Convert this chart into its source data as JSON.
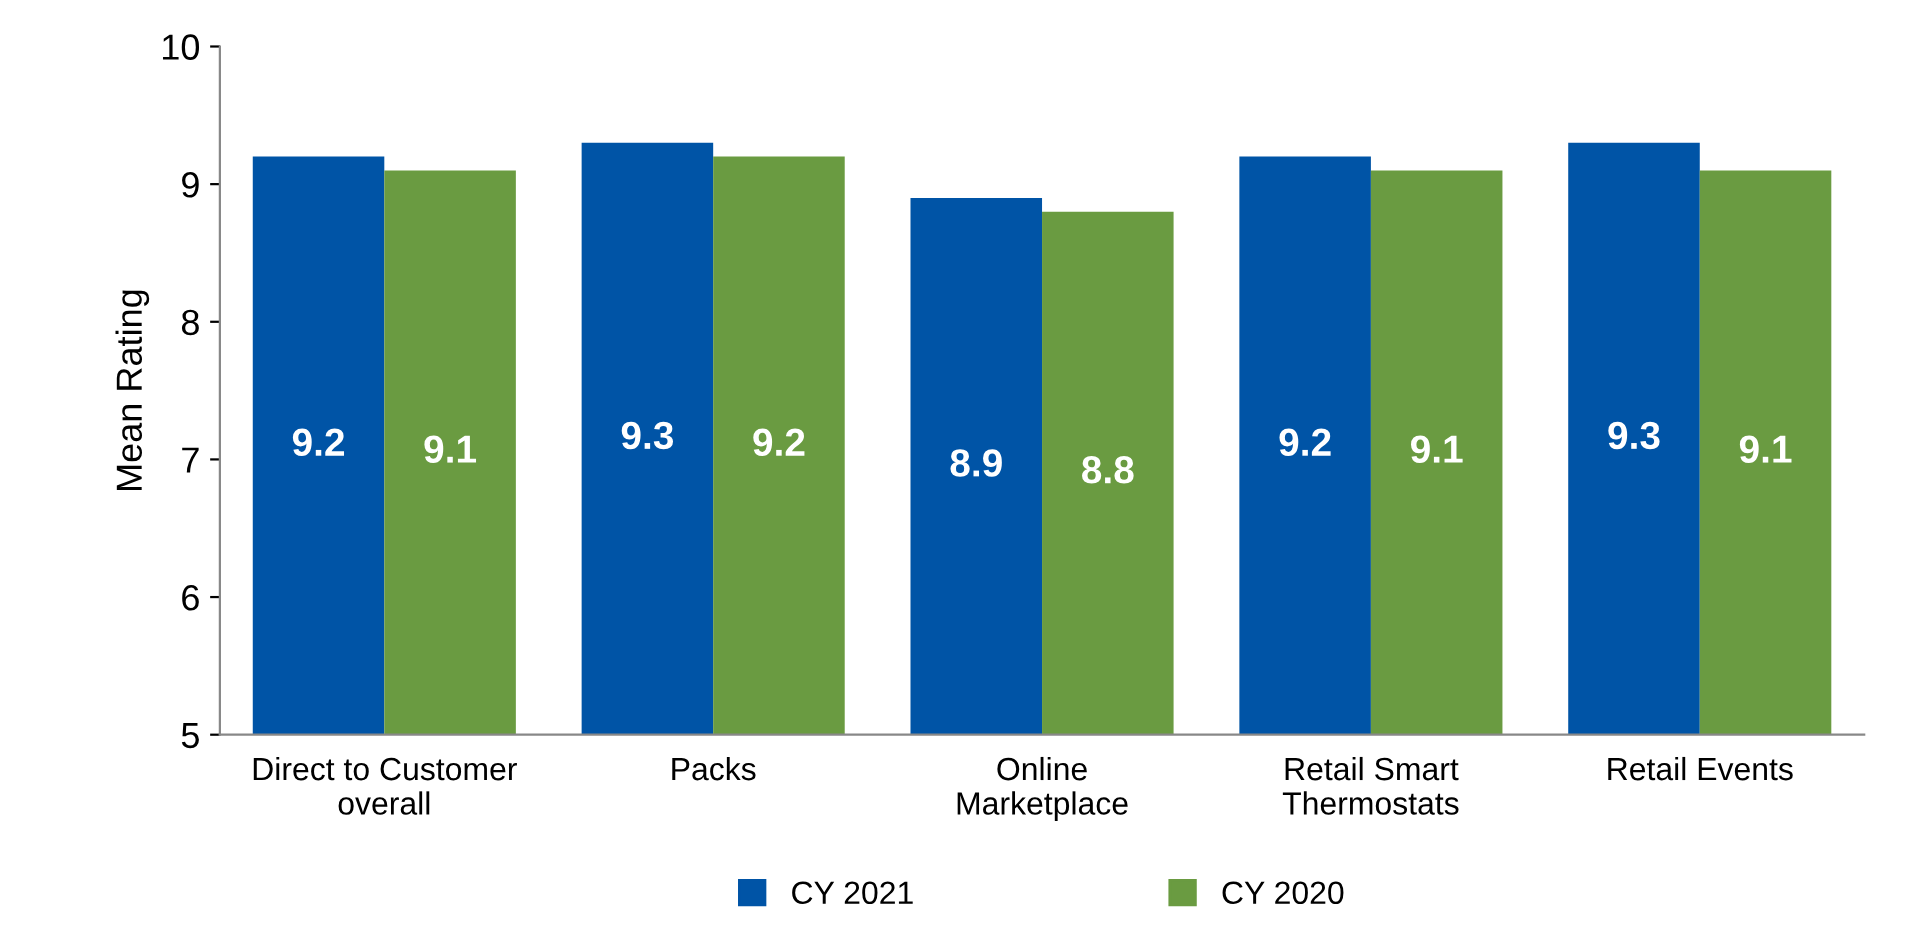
{
  "chart_data": {
    "type": "bar",
    "ylabel": "Mean Rating",
    "categories": [
      "Direct to Customer\noverall",
      "Packs",
      "Online\nMarketplace",
      "Retail Smart\nThermostats",
      "Retail Events"
    ],
    "series": [
      {
        "name": "CY 2021",
        "color": "#0054a6",
        "values": [
          9.2,
          9.3,
          8.9,
          9.2,
          9.3
        ]
      },
      {
        "name": "CY 2020",
        "color": "#6a9b41",
        "values": [
          9.1,
          9.2,
          8.8,
          9.1,
          9.1
        ]
      }
    ],
    "ylim": [
      5,
      10
    ],
    "yticks": [
      5,
      6,
      7,
      8,
      9,
      10
    ],
    "grid": false,
    "legend": "bottom",
    "data_labels": true
  }
}
